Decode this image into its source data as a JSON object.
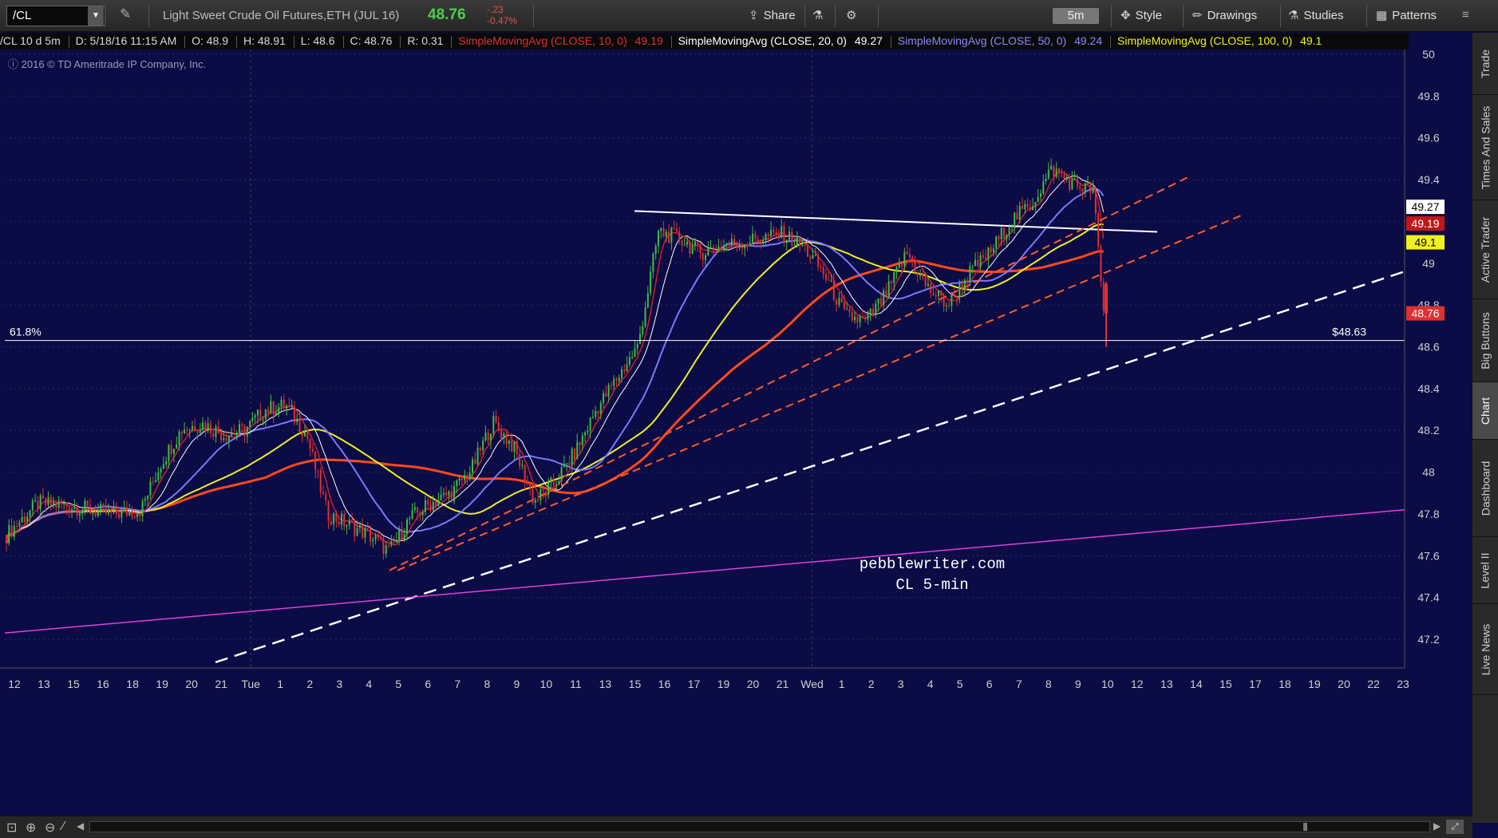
{
  "toolbar": {
    "symbol": "/CL",
    "instrument": "Light Sweet Crude Oil Futures,ETH (JUL 16)",
    "last": "48.76",
    "change": "-.23",
    "change_pct": "-0.47%",
    "share": "Share",
    "timeframe": "5m",
    "style": "Style",
    "drawings": "Drawings",
    "studies": "Studies",
    "patterns": "Patterns"
  },
  "infobar": {
    "desc": "/CL 10 d 5m",
    "date": "D: 5/18/16 11:15 AM",
    "open": "O: 48.9",
    "high": "H: 48.91",
    "low": "L: 48.6",
    "close": "C: 48.76",
    "range": "R: 0.31",
    "sma10": "SimpleMovingAvg (CLOSE, 10, 0)",
    "sma10_val": "49.19",
    "sma20": "SimpleMovingAvg (CLOSE, 20, 0)",
    "sma20_val": "49.27",
    "sma50": "SimpleMovingAvg (CLOSE, 50, 0)",
    "sma50_val": "49.24",
    "sma100": "SimpleMovingAvg (CLOSE, 100, 0)",
    "sma100_val": "49.1"
  },
  "copyright": "2016 © TD Ameritrade IP Company, Inc.",
  "right_tabs": [
    "Trade",
    "Times And Sales",
    "Active Trader",
    "Big Buttons",
    "Chart",
    "Dashboard",
    "Level II",
    "Live News"
  ],
  "active_tab": "Chart",
  "colors": {
    "background": "#0b0b45",
    "up": "#3fbf3f",
    "down": "#e03030",
    "sma10": "#d02020",
    "sma20": "#ffffff",
    "sma50": "#7b78ff",
    "sma100": "#f0f020",
    "sma200": "#ff4a1a",
    "trend_dash": "#ff5a2a",
    "white_dash": "#ffffff",
    "magenta": "#e040e0"
  },
  "chart_data": {
    "type": "candlestick",
    "symbol": "/CL",
    "interval": "5m",
    "ylim": [
      47.0,
      50.0
    ],
    "yticks": [
      47.2,
      47.4,
      47.6,
      47.8,
      48.0,
      48.2,
      48.4,
      48.6,
      48.8,
      49.0,
      49.2,
      49.4,
      49.6,
      49.8,
      50.0
    ],
    "ytick_labels": [
      "47.2",
      "47.4",
      "47.6",
      "47.8",
      "48",
      "48.2",
      "48.4",
      "48.6",
      "48.8",
      "49",
      "49.2",
      "49.4",
      "49.6",
      "49.8",
      "50"
    ],
    "xticks": [
      "12",
      "13",
      "15",
      "16",
      "18",
      "19",
      "20",
      "21",
      "Tue",
      "1",
      "2",
      "3",
      "4",
      "5",
      "6",
      "7",
      "8",
      "9",
      "10",
      "11",
      "13",
      "15",
      "16",
      "17",
      "19",
      "20",
      "21",
      "Wed",
      "1",
      "2",
      "3",
      "4",
      "5",
      "6",
      "7",
      "8",
      "9",
      "10",
      "12",
      "13",
      "14",
      "15",
      "17",
      "18",
      "19",
      "20",
      "22",
      "23"
    ],
    "fib_level": {
      "label": "61.8%",
      "value": 48.63,
      "price_label": "$48.63"
    },
    "price_tags": [
      {
        "text": "49.27",
        "value": 49.27,
        "series": "sma20"
      },
      {
        "text": "49.19",
        "value": 49.19,
        "series": "sma10"
      },
      {
        "text": "49.1",
        "value": 49.1,
        "series": "sma100"
      },
      {
        "text": "48.76",
        "value": 48.76,
        "series": "last"
      }
    ],
    "annotation": [
      "pebblewriter.com",
      "CL 5-min"
    ],
    "session_dividers": [
      "Tue",
      "Wed"
    ],
    "last_bar": {
      "open": 48.9,
      "high": 48.91,
      "low": 48.6,
      "close": 48.76
    },
    "series_shape": [
      [
        0,
        47.7
      ],
      [
        3,
        47.85
      ],
      [
        6,
        47.84
      ],
      [
        10,
        47.8
      ],
      [
        13,
        47.82
      ],
      [
        15,
        48.05
      ],
      [
        17,
        48.21
      ],
      [
        19,
        48.23
      ],
      [
        21,
        48.18
      ],
      [
        23,
        48.2
      ],
      [
        25,
        48.3
      ],
      [
        27,
        48.32
      ],
      [
        29,
        48.18
      ],
      [
        31,
        47.8
      ],
      [
        33,
        47.75
      ],
      [
        35,
        47.7
      ],
      [
        37,
        47.62
      ],
      [
        39,
        47.78
      ],
      [
        41,
        47.85
      ],
      [
        43,
        47.9
      ],
      [
        45,
        48.02
      ],
      [
        47,
        48.24
      ],
      [
        49,
        48.12
      ],
      [
        51,
        47.86
      ],
      [
        53,
        47.95
      ],
      [
        55,
        48.1
      ],
      [
        57,
        48.3
      ],
      [
        59,
        48.45
      ],
      [
        61,
        48.6
      ],
      [
        63,
        49.15
      ],
      [
        65,
        49.12
      ],
      [
        67,
        49.05
      ],
      [
        69,
        49.08
      ],
      [
        71,
        49.1
      ],
      [
        73,
        49.12
      ],
      [
        75,
        49.14
      ],
      [
        77,
        49.08
      ],
      [
        79,
        48.95
      ],
      [
        81,
        48.75
      ],
      [
        83,
        48.72
      ],
      [
        85,
        48.85
      ],
      [
        87,
        49.05
      ],
      [
        89,
        48.88
      ],
      [
        91,
        48.8
      ],
      [
        93,
        48.95
      ],
      [
        95,
        49.05
      ],
      [
        97,
        49.2
      ],
      [
        99,
        49.28
      ],
      [
        101,
        49.45
      ],
      [
        103,
        49.38
      ],
      [
        105,
        49.35
      ],
      [
        106,
        48.76
      ]
    ]
  }
}
